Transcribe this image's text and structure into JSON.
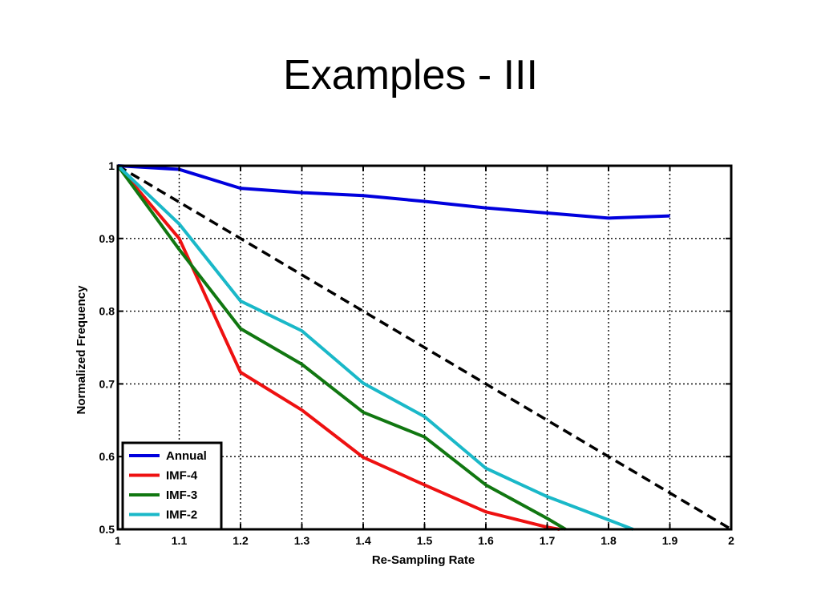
{
  "slide": {
    "title": "Examples  - III"
  },
  "chart_data": {
    "type": "line",
    "title": "",
    "xlabel": "Re-Sampling Rate",
    "ylabel": "Normalized Frequency",
    "xlim": [
      1,
      2
    ],
    "ylim": [
      0.5,
      1
    ],
    "xticks": [
      1,
      1.1,
      1.2,
      1.3,
      1.4,
      1.5,
      1.6,
      1.7,
      1.8,
      1.9,
      2
    ],
    "xtick_labels": [
      "1",
      "1.1",
      "1.2",
      "1.3",
      "1.4",
      "1.5",
      "1.6",
      "1.7",
      "1.8",
      "1.9",
      "2"
    ],
    "yticks": [
      0.5,
      0.6,
      0.7,
      0.8,
      0.9,
      1
    ],
    "ytick_labels": [
      "0.5",
      "0.6",
      "0.7",
      "0.8",
      "0.9",
      "1"
    ],
    "grid": true,
    "legend_position": "bottom-left",
    "series": [
      {
        "name": "Annual",
        "color": "#0000dd",
        "style": "solid",
        "x": [
          1,
          1.1,
          1.2,
          1.3,
          1.4,
          1.5,
          1.6,
          1.7,
          1.8,
          1.9
        ],
        "y": [
          1.0,
          0.995,
          0.969,
          0.963,
          0.959,
          0.951,
          0.942,
          0.935,
          0.928,
          0.931
        ]
      },
      {
        "name": "IMF-4",
        "color": "#ee1111",
        "style": "solid",
        "x": [
          1,
          1.1,
          1.2,
          1.3,
          1.4,
          1.5,
          1.6,
          1.7,
          1.72
        ],
        "y": [
          1.0,
          0.9,
          0.716,
          0.664,
          0.599,
          0.561,
          0.524,
          0.503,
          0.5
        ]
      },
      {
        "name": "IMF-3",
        "color": "#117711",
        "style": "solid",
        "x": [
          1,
          1.1,
          1.2,
          1.3,
          1.4,
          1.5,
          1.6,
          1.7,
          1.73
        ],
        "y": [
          1.0,
          0.885,
          0.776,
          0.727,
          0.661,
          0.627,
          0.561,
          0.515,
          0.5
        ]
      },
      {
        "name": "IMF-2",
        "color": "#1ab8c8",
        "style": "solid",
        "x": [
          1,
          1.1,
          1.2,
          1.3,
          1.4,
          1.5,
          1.6,
          1.7,
          1.8,
          1.84
        ],
        "y": [
          1.0,
          0.92,
          0.814,
          0.773,
          0.701,
          0.655,
          0.584,
          0.545,
          0.513,
          0.5
        ]
      },
      {
        "name": "",
        "color": "#000000",
        "style": "dashed",
        "x": [
          1,
          2
        ],
        "y": [
          1.0,
          0.5
        ]
      }
    ]
  }
}
